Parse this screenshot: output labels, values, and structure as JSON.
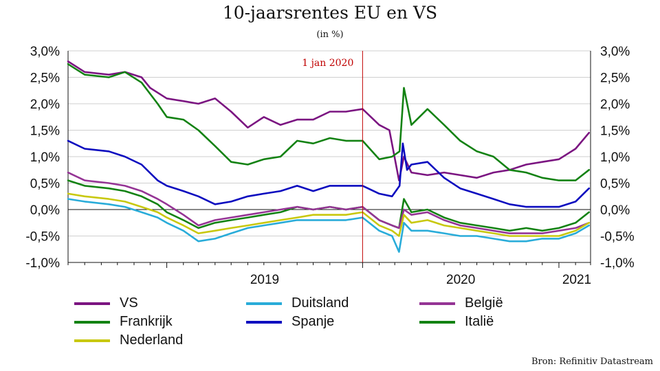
{
  "chart_data": {
    "type": "line",
    "title": "10-jaarsrentes EU en VS",
    "subtitle": "(in %)",
    "ylim": [
      -1.0,
      3.0
    ],
    "yticks": [
      "3,0%",
      "2,5%",
      "2,0%",
      "1,5%",
      "1,0%",
      "0,5%",
      "0,0%",
      "-0,5%",
      "-1,0%"
    ],
    "xlim": [
      "2018-07-01",
      "2021-03-01"
    ],
    "xtick_labels": [
      "2019",
      "2020",
      "2021"
    ],
    "annotation": {
      "label": "1 jan 2020",
      "x": "2020-01-01",
      "color": "#c00000"
    },
    "grid": true,
    "legend_position": "bottom",
    "series": [
      {
        "name": "VS",
        "color": "#7b1581",
        "points": [
          [
            "2018-07-01",
            2.8
          ],
          [
            "2018-08-01",
            2.6
          ],
          [
            "2018-09-15",
            2.55
          ],
          [
            "2018-10-15",
            2.6
          ],
          [
            "2018-11-15",
            2.5
          ],
          [
            "2018-12-01",
            2.3
          ],
          [
            "2019-01-01",
            2.1
          ],
          [
            "2019-02-01",
            2.05
          ],
          [
            "2019-03-01",
            2.0
          ],
          [
            "2019-04-01",
            2.1
          ],
          [
            "2019-05-01",
            1.85
          ],
          [
            "2019-06-01",
            1.55
          ],
          [
            "2019-07-01",
            1.75
          ],
          [
            "2019-08-01",
            1.6
          ],
          [
            "2019-09-01",
            1.7
          ],
          [
            "2019-10-01",
            1.7
          ],
          [
            "2019-11-01",
            1.85
          ],
          [
            "2019-12-01",
            1.85
          ],
          [
            "2020-01-01",
            1.9
          ],
          [
            "2020-02-01",
            1.6
          ],
          [
            "2020-02-20",
            1.5
          ],
          [
            "2020-03-09",
            0.55
          ],
          [
            "2020-03-18",
            1.0
          ],
          [
            "2020-04-01",
            0.7
          ],
          [
            "2020-05-01",
            0.65
          ],
          [
            "2020-06-01",
            0.7
          ],
          [
            "2020-07-01",
            0.65
          ],
          [
            "2020-08-01",
            0.6
          ],
          [
            "2020-09-01",
            0.7
          ],
          [
            "2020-10-01",
            0.75
          ],
          [
            "2020-11-01",
            0.85
          ],
          [
            "2020-12-01",
            0.9
          ],
          [
            "2021-01-01",
            0.95
          ],
          [
            "2021-02-01",
            1.15
          ],
          [
            "2021-02-26",
            1.45
          ]
        ]
      },
      {
        "name": "Frankrijk",
        "color": "#138213",
        "points": [
          [
            "2018-07-01",
            2.75
          ],
          [
            "2018-08-01",
            2.55
          ],
          [
            "2018-09-15",
            2.5
          ],
          [
            "2018-10-15",
            2.6
          ],
          [
            "2018-11-15",
            2.4
          ],
          [
            "2018-12-15",
            2.0
          ],
          [
            "2019-01-01",
            1.75
          ],
          [
            "2019-02-01",
            1.7
          ],
          [
            "2019-03-01",
            1.5
          ],
          [
            "2019-04-01",
            1.2
          ],
          [
            "2019-05-01",
            0.9
          ],
          [
            "2019-06-01",
            0.85
          ],
          [
            "2019-07-01",
            0.95
          ],
          [
            "2019-08-01",
            1.0
          ],
          [
            "2019-09-01",
            1.3
          ],
          [
            "2019-10-01",
            1.25
          ],
          [
            "2019-11-01",
            1.35
          ],
          [
            "2019-12-01",
            1.3
          ],
          [
            "2020-01-01",
            1.3
          ],
          [
            "2020-02-01",
            0.95
          ],
          [
            "2020-02-25",
            1.0
          ],
          [
            "2020-03-10",
            1.1
          ],
          [
            "2020-03-18",
            2.3
          ],
          [
            "2020-04-01",
            1.6
          ],
          [
            "2020-05-01",
            1.9
          ],
          [
            "2020-06-01",
            1.6
          ],
          [
            "2020-07-01",
            1.3
          ],
          [
            "2020-08-01",
            1.1
          ],
          [
            "2020-09-01",
            1.0
          ],
          [
            "2020-10-01",
            0.75
          ],
          [
            "2020-11-01",
            0.7
          ],
          [
            "2020-12-01",
            0.6
          ],
          [
            "2021-01-01",
            0.55
          ],
          [
            "2021-02-01",
            0.55
          ],
          [
            "2021-02-26",
            0.75
          ]
        ]
      },
      {
        "name": "Spanje",
        "color": "#0b0bbf",
        "points": [
          [
            "2018-07-01",
            1.3
          ],
          [
            "2018-08-01",
            1.15
          ],
          [
            "2018-09-15",
            1.1
          ],
          [
            "2018-10-15",
            1.0
          ],
          [
            "2018-11-15",
            0.85
          ],
          [
            "2018-12-15",
            0.55
          ],
          [
            "2019-01-01",
            0.45
          ],
          [
            "2019-02-01",
            0.35
          ],
          [
            "2019-03-01",
            0.25
          ],
          [
            "2019-04-01",
            0.1
          ],
          [
            "2019-05-01",
            0.15
          ],
          [
            "2019-06-01",
            0.25
          ],
          [
            "2019-07-01",
            0.3
          ],
          [
            "2019-08-01",
            0.35
          ],
          [
            "2019-09-01",
            0.45
          ],
          [
            "2019-10-01",
            0.35
          ],
          [
            "2019-11-01",
            0.45
          ],
          [
            "2019-12-01",
            0.45
          ],
          [
            "2020-01-01",
            0.45
          ],
          [
            "2020-02-01",
            0.3
          ],
          [
            "2020-02-25",
            0.25
          ],
          [
            "2020-03-10",
            0.45
          ],
          [
            "2020-03-16",
            1.25
          ],
          [
            "2020-03-24",
            0.75
          ],
          [
            "2020-04-01",
            0.85
          ],
          [
            "2020-05-01",
            0.9
          ],
          [
            "2020-06-01",
            0.6
          ],
          [
            "2020-07-01",
            0.4
          ],
          [
            "2020-08-01",
            0.3
          ],
          [
            "2020-09-01",
            0.2
          ],
          [
            "2020-10-01",
            0.1
          ],
          [
            "2020-11-01",
            0.05
          ],
          [
            "2020-12-01",
            0.05
          ],
          [
            "2021-01-01",
            0.05
          ],
          [
            "2021-02-01",
            0.15
          ],
          [
            "2021-02-26",
            0.4
          ]
        ]
      },
      {
        "name": "Italië",
        "color": "#138213",
        "points": [
          [
            "2018-07-01",
            0.55
          ],
          [
            "2018-08-01",
            0.45
          ],
          [
            "2018-09-15",
            0.4
          ],
          [
            "2018-10-15",
            0.35
          ],
          [
            "2018-11-15",
            0.25
          ],
          [
            "2018-12-15",
            0.1
          ],
          [
            "2019-01-01",
            -0.05
          ],
          [
            "2019-02-01",
            -0.2
          ],
          [
            "2019-03-01",
            -0.35
          ],
          [
            "2019-04-01",
            -0.25
          ],
          [
            "2019-05-01",
            -0.2
          ],
          [
            "2019-06-01",
            -0.15
          ],
          [
            "2019-07-01",
            -0.1
          ],
          [
            "2019-08-01",
            -0.05
          ],
          [
            "2019-09-01",
            0.05
          ],
          [
            "2019-10-01",
            0.0
          ],
          [
            "2019-11-01",
            0.05
          ],
          [
            "2019-12-01",
            0.0
          ],
          [
            "2020-01-01",
            0.05
          ],
          [
            "2020-02-01",
            -0.2
          ],
          [
            "2020-02-25",
            -0.3
          ],
          [
            "2020-03-09",
            -0.35
          ],
          [
            "2020-03-18",
            0.2
          ],
          [
            "2020-04-01",
            -0.05
          ],
          [
            "2020-05-01",
            0.0
          ],
          [
            "2020-06-01",
            -0.15
          ],
          [
            "2020-07-01",
            -0.25
          ],
          [
            "2020-08-01",
            -0.3
          ],
          [
            "2020-09-01",
            -0.35
          ],
          [
            "2020-10-01",
            -0.4
          ],
          [
            "2020-11-01",
            -0.35
          ],
          [
            "2020-12-01",
            -0.4
          ],
          [
            "2021-01-01",
            -0.35
          ],
          [
            "2021-02-01",
            -0.25
          ],
          [
            "2021-02-26",
            -0.05
          ]
        ]
      },
      {
        "name": "België",
        "color": "#953495",
        "points": [
          [
            "2018-07-01",
            0.7
          ],
          [
            "2018-08-01",
            0.55
          ],
          [
            "2018-09-15",
            0.5
          ],
          [
            "2018-10-15",
            0.45
          ],
          [
            "2018-11-15",
            0.35
          ],
          [
            "2018-12-15",
            0.2
          ],
          [
            "2019-01-01",
            0.1
          ],
          [
            "2019-02-01",
            -0.1
          ],
          [
            "2019-03-01",
            -0.3
          ],
          [
            "2019-04-01",
            -0.2
          ],
          [
            "2019-05-01",
            -0.15
          ],
          [
            "2019-06-01",
            -0.1
          ],
          [
            "2019-07-01",
            -0.05
          ],
          [
            "2019-08-01",
            0.0
          ],
          [
            "2019-09-01",
            0.05
          ],
          [
            "2019-10-01",
            0.0
          ],
          [
            "2019-11-01",
            0.05
          ],
          [
            "2019-12-01",
            0.0
          ],
          [
            "2020-01-01",
            0.05
          ],
          [
            "2020-02-01",
            -0.2
          ],
          [
            "2020-02-25",
            -0.3
          ],
          [
            "2020-03-09",
            -0.35
          ],
          [
            "2020-03-18",
            0.0
          ],
          [
            "2020-04-01",
            -0.1
          ],
          [
            "2020-05-01",
            -0.05
          ],
          [
            "2020-06-01",
            -0.2
          ],
          [
            "2020-07-01",
            -0.3
          ],
          [
            "2020-08-01",
            -0.35
          ],
          [
            "2020-09-01",
            -0.4
          ],
          [
            "2020-10-01",
            -0.45
          ],
          [
            "2020-11-01",
            -0.45
          ],
          [
            "2020-12-01",
            -0.45
          ],
          [
            "2021-01-01",
            -0.4
          ],
          [
            "2021-02-01",
            -0.35
          ],
          [
            "2021-02-26",
            -0.25
          ]
        ]
      },
      {
        "name": "Nederland",
        "color": "#c8c80e",
        "points": [
          [
            "2018-07-01",
            0.3
          ],
          [
            "2018-08-01",
            0.25
          ],
          [
            "2018-09-15",
            0.2
          ],
          [
            "2018-10-15",
            0.15
          ],
          [
            "2018-11-15",
            0.05
          ],
          [
            "2018-12-15",
            -0.05
          ],
          [
            "2019-01-01",
            -0.15
          ],
          [
            "2019-02-01",
            -0.3
          ],
          [
            "2019-03-01",
            -0.45
          ],
          [
            "2019-04-01",
            -0.4
          ],
          [
            "2019-05-01",
            -0.35
          ],
          [
            "2019-06-01",
            -0.3
          ],
          [
            "2019-07-01",
            -0.25
          ],
          [
            "2019-08-01",
            -0.2
          ],
          [
            "2019-09-01",
            -0.15
          ],
          [
            "2019-10-01",
            -0.1
          ],
          [
            "2019-11-01",
            -0.1
          ],
          [
            "2019-12-01",
            -0.1
          ],
          [
            "2020-01-01",
            -0.05
          ],
          [
            "2020-02-01",
            -0.3
          ],
          [
            "2020-02-25",
            -0.4
          ],
          [
            "2020-03-09",
            -0.5
          ],
          [
            "2020-03-18",
            -0.1
          ],
          [
            "2020-04-01",
            -0.25
          ],
          [
            "2020-05-01",
            -0.2
          ],
          [
            "2020-06-01",
            -0.3
          ],
          [
            "2020-07-01",
            -0.35
          ],
          [
            "2020-08-01",
            -0.4
          ],
          [
            "2020-09-01",
            -0.45
          ],
          [
            "2020-10-01",
            -0.5
          ],
          [
            "2020-11-01",
            -0.5
          ],
          [
            "2020-12-01",
            -0.5
          ],
          [
            "2021-01-01",
            -0.5
          ],
          [
            "2021-02-01",
            -0.4
          ],
          [
            "2021-02-26",
            -0.25
          ]
        ]
      },
      {
        "name": "Duitsland",
        "color": "#29acd9",
        "points": [
          [
            "2018-07-01",
            0.2
          ],
          [
            "2018-08-01",
            0.15
          ],
          [
            "2018-09-15",
            0.1
          ],
          [
            "2018-10-15",
            0.05
          ],
          [
            "2018-11-15",
            -0.05
          ],
          [
            "2018-12-15",
            -0.15
          ],
          [
            "2019-01-01",
            -0.25
          ],
          [
            "2019-02-01",
            -0.4
          ],
          [
            "2019-03-01",
            -0.6
          ],
          [
            "2019-04-01",
            -0.55
          ],
          [
            "2019-05-01",
            -0.45
          ],
          [
            "2019-06-01",
            -0.35
          ],
          [
            "2019-07-01",
            -0.3
          ],
          [
            "2019-08-01",
            -0.25
          ],
          [
            "2019-09-01",
            -0.2
          ],
          [
            "2019-10-01",
            -0.2
          ],
          [
            "2019-11-01",
            -0.2
          ],
          [
            "2019-12-01",
            -0.2
          ],
          [
            "2020-01-01",
            -0.15
          ],
          [
            "2020-02-01",
            -0.4
          ],
          [
            "2020-02-25",
            -0.5
          ],
          [
            "2020-03-09",
            -0.8
          ],
          [
            "2020-03-18",
            -0.25
          ],
          [
            "2020-04-01",
            -0.4
          ],
          [
            "2020-05-01",
            -0.4
          ],
          [
            "2020-06-01",
            -0.45
          ],
          [
            "2020-07-01",
            -0.5
          ],
          [
            "2020-08-01",
            -0.5
          ],
          [
            "2020-09-01",
            -0.55
          ],
          [
            "2020-10-01",
            -0.6
          ],
          [
            "2020-11-01",
            -0.6
          ],
          [
            "2020-12-01",
            -0.55
          ],
          [
            "2021-01-01",
            -0.55
          ],
          [
            "2021-02-01",
            -0.45
          ],
          [
            "2021-02-26",
            -0.3
          ]
        ]
      }
    ]
  },
  "legend": [
    {
      "label": "VS",
      "color": "#7b1581"
    },
    {
      "label": "Duitsland",
      "color": "#29acd9"
    },
    {
      "label": "België",
      "color": "#953495"
    },
    {
      "label": "Frankrijk",
      "color": "#138213"
    },
    {
      "label": "Spanje",
      "color": "#0b0bbf"
    },
    {
      "label": "Italië",
      "color": "#138213"
    },
    {
      "label": "Nederland",
      "color": "#c8c80e"
    }
  ],
  "source": "Bron: Refinitiv Datastream"
}
